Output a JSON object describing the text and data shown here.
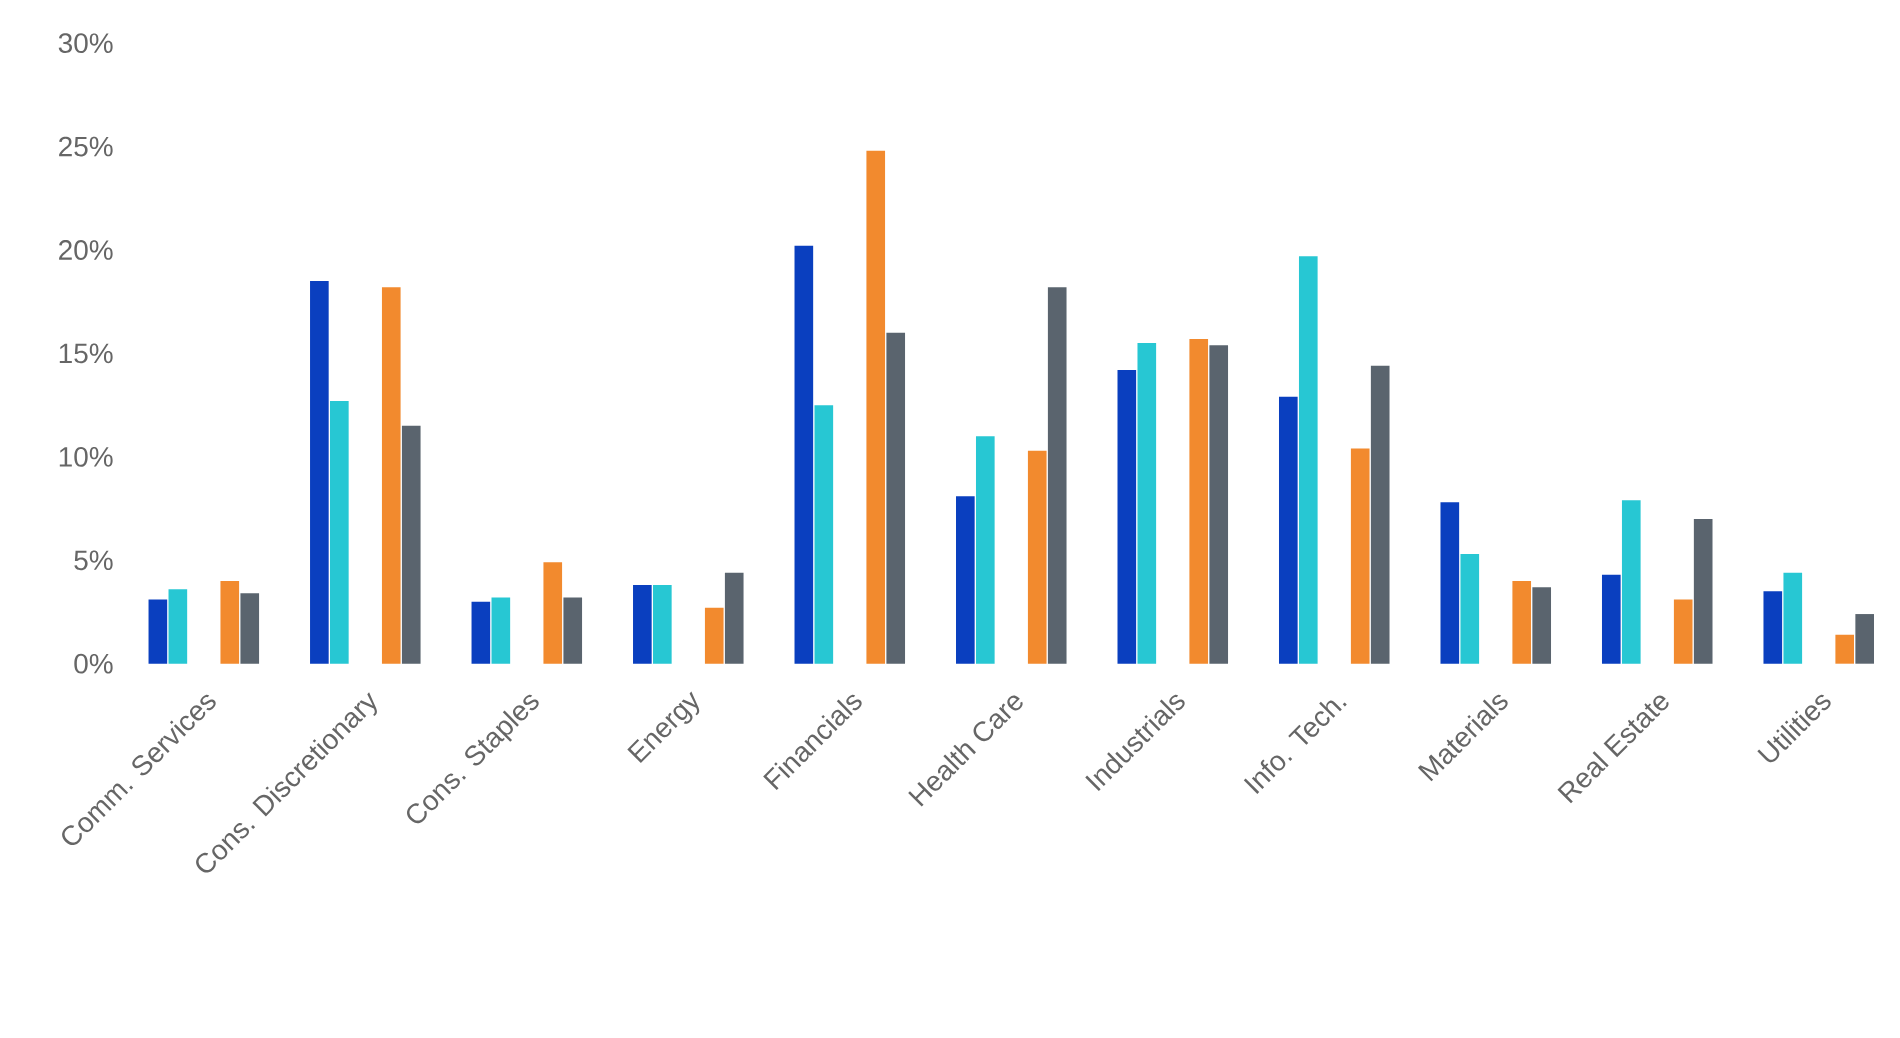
{
  "chart_data": {
    "type": "bar",
    "categories": [
      "Comm. Services",
      "Cons. Discretionary",
      "Cons. Staples",
      "Energy",
      "Financials",
      "Health Care",
      "Industrials",
      "Info. Tech.",
      "Materials",
      "Real Estate",
      "Utilities"
    ],
    "series": [
      {
        "color": "#0a3fbf",
        "values": [
          3.1,
          18.5,
          3.0,
          3.8,
          20.2,
          8.1,
          14.2,
          12.9,
          7.8,
          4.3,
          3.5
        ]
      },
      {
        "color": "#27c7d3",
        "values": [
          3.6,
          12.7,
          3.2,
          3.8,
          12.5,
          11.0,
          15.5,
          19.7,
          5.3,
          7.9,
          4.4
        ]
      },
      {
        "color": "#f28a2e",
        "values": [
          4.0,
          18.2,
          4.9,
          2.7,
          24.8,
          10.3,
          15.7,
          10.4,
          4.0,
          3.1,
          1.4
        ]
      },
      {
        "color": "#5a646e",
        "values": [
          3.4,
          11.5,
          3.2,
          4.4,
          16.0,
          18.2,
          15.4,
          14.4,
          3.7,
          7.0,
          2.4
        ]
      }
    ],
    "ylim": [
      0,
      30
    ],
    "yticks": [
      {
        "value": 0,
        "label": "0%"
      },
      {
        "value": 5,
        "label": "5%"
      },
      {
        "value": 10,
        "label": "10%"
      },
      {
        "value": 15,
        "label": "15%"
      },
      {
        "value": 20,
        "label": "20%"
      },
      {
        "value": 25,
        "label": "25%"
      },
      {
        "value": 30,
        "label": "30%"
      }
    ],
    "grid": false
  }
}
